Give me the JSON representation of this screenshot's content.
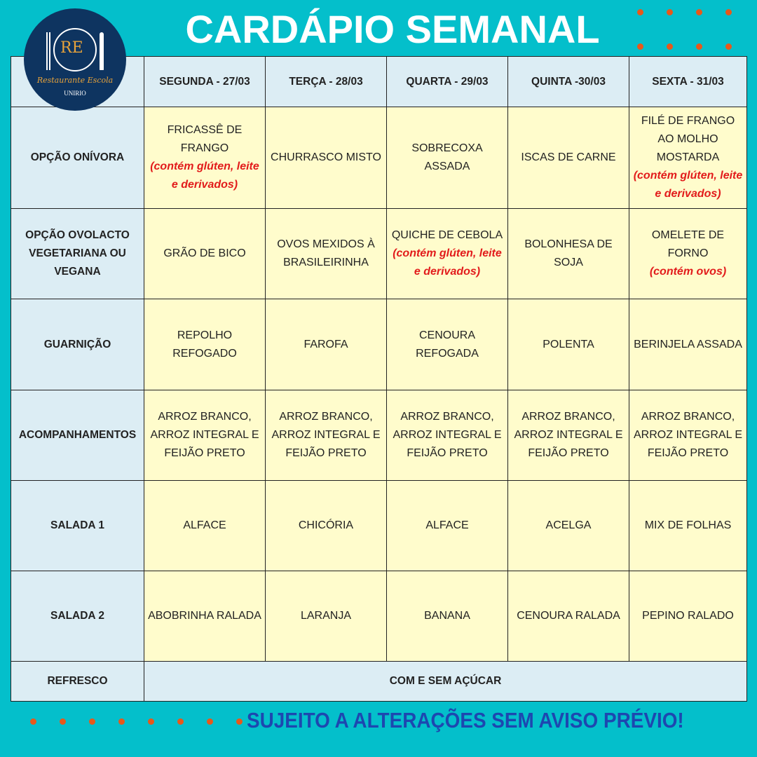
{
  "title": "CARDÁPIO SEMANAL",
  "logo": {
    "initials": "RE",
    "name": "Restaurante Escola",
    "org": "UNIRIO"
  },
  "days": [
    "SEGUNDA - 27/03",
    "TERÇA - 28/03",
    "QUARTA - 29/03",
    "QUINTA -30/03",
    "SEXTA - 31/03"
  ],
  "rows": [
    {
      "label": "OPÇÃO ONÍVORA",
      "cells": [
        {
          "text": "FRICASSÊ DE FRANGO",
          "note": "(contém glúten, leite e derivados)"
        },
        {
          "text": "CHURRASCO MISTO"
        },
        {
          "text": "SOBRECOXA ASSADA"
        },
        {
          "text": "ISCAS DE CARNE"
        },
        {
          "text": "FILÉ DE FRANGO AO MOLHO MOSTARDA",
          "note": "(contém glúten, leite e derivados)"
        }
      ]
    },
    {
      "label": "OPÇÃO OVOLACTO VEGETARIANA OU VEGANA",
      "cells": [
        {
          "text": "GRÃO DE BICO"
        },
        {
          "text": "OVOS MEXIDOS À BRASILEIRINHA"
        },
        {
          "text": "QUICHE DE CEBOLA",
          "note": "(contém glúten, leite e derivados)"
        },
        {
          "text": "BOLONHESA DE SOJA"
        },
        {
          "text": "OMELETE DE FORNO",
          "note": "(contém ovos)"
        }
      ]
    },
    {
      "label": "GUARNIÇÃO",
      "cells": [
        {
          "text": "REPOLHO REFOGADO"
        },
        {
          "text": "FAROFA"
        },
        {
          "text": "CENOURA REFOGADA"
        },
        {
          "text": "POLENTA"
        },
        {
          "text": "BERINJELA ASSADA"
        }
      ]
    },
    {
      "label": "ACOMPANHAMENTOS",
      "cells": [
        {
          "text": "ARROZ BRANCO, ARROZ INTEGRAL E FEIJÃO PRETO"
        },
        {
          "text": "ARROZ BRANCO, ARROZ INTEGRAL E FEIJÃO PRETO"
        },
        {
          "text": "ARROZ BRANCO, ARROZ INTEGRAL E FEIJÃO PRETO"
        },
        {
          "text": "ARROZ BRANCO, ARROZ INTEGRAL E FEIJÃO PRETO"
        },
        {
          "text": "ARROZ BRANCO, ARROZ INTEGRAL E FEIJÃO PRETO"
        }
      ]
    },
    {
      "label": "SALADA 1",
      "cells": [
        {
          "text": "ALFACE"
        },
        {
          "text": "CHICÓRIA"
        },
        {
          "text": "ALFACE"
        },
        {
          "text": "ACELGA"
        },
        {
          "text": "MIX DE FOLHAS"
        }
      ]
    },
    {
      "label": "SALADA 2",
      "cells": [
        {
          "text": "ABOBRINHA RALADA"
        },
        {
          "text": "LARANJA"
        },
        {
          "text": "BANANA"
        },
        {
          "text": "CENOURA RALADA"
        },
        {
          "text": "PEPINO RALADO"
        }
      ]
    }
  ],
  "refresco": {
    "label": "REFRESCO",
    "value": "COM E SEM AÇÚCAR"
  },
  "footer": "SUJEITO A ALTERAÇÕES SEM AVISO PRÉVIO!",
  "colors": {
    "background": "#04BFCB",
    "header_cell": "#DCEDF4",
    "menu_cell": "#FFFCCC",
    "allergen_note": "#E21B1B",
    "footer_text": "#1D47B0",
    "dots": "#E8581A"
  }
}
